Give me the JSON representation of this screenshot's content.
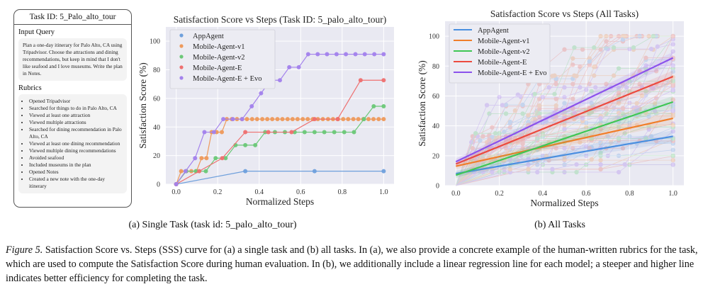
{
  "task_card": {
    "title": "Task ID: 5_Palo_alto_tour",
    "input_query_heading": "Input Query",
    "input_query": "Plan a one-day itinerary for Palo Alto, CA using Tripadvisor. Choose the attractions and dining recommendations, but keep in mind that I don't like seafood and I love museums. Write the plan in Notes.",
    "rubrics_heading": "Rubrics",
    "rubrics": [
      "Opened Tripadvisor",
      "Searched for things to do in Palo Alto, CA",
      "Viewed at least one attraction",
      "Viewed multiple attractions",
      "Searched for dining recommendation in Palo Alto, CA",
      "Viewed at least one dining recommendation",
      "Viewed multiple dining recommendations",
      "Avoided seafood",
      "Included museums in the plan",
      "Opened Notes",
      "Created a new note with the one-day itinerary"
    ]
  },
  "subcaptions": {
    "a": "(a) Single Task (task id: 5_palo_alto_tour)",
    "b": "(b) All Tasks"
  },
  "caption": {
    "figure_label": "Figure 5.",
    "text": " Satisfaction Score vs. Steps (SSS) curve for (a) a single task and (b) all tasks. In (a), we also provide a concrete example of the human-written rubrics for the task, which are used to compute the Satisfaction Score during human evaluation. In (b), we additionally include a linear regression line for each model; a steeper and higher line indicates better efficiency for completing the task."
  },
  "chart_data": [
    {
      "type": "line",
      "title": "Satisfaction Score vs Steps (Task ID: 5_palo_alto_tour)",
      "xlabel": "Normalized Steps",
      "ylabel": "Satisfaction Score (%)",
      "xlim": [
        -0.05,
        1.05
      ],
      "ylim": [
        0,
        110
      ],
      "xticks": [
        "0.0",
        "0.2",
        "0.4",
        "0.6",
        "0.8",
        "1.0"
      ],
      "yticks": [
        "0",
        "20",
        "40",
        "60",
        "80",
        "100"
      ],
      "grid": true,
      "legend_position": "top-left",
      "legend_marker": "dot",
      "series": [
        {
          "name": "AppAgent",
          "color": "#6fa0dc",
          "x": [
            0,
            0.333,
            0.667,
            1.0
          ],
          "y": [
            0,
            9.1,
            9.1,
            9.1
          ]
        },
        {
          "name": "Mobile-Agent-v1",
          "color": "#ee9a5c",
          "x": [
            0,
            0.024,
            0.049,
            0.073,
            0.098,
            0.122,
            0.146,
            0.171,
            0.195,
            0.22,
            0.244,
            0.268,
            0.293,
            0.317,
            0.341,
            0.366,
            0.39,
            0.415,
            0.439,
            0.463,
            0.488,
            0.512,
            0.537,
            0.561,
            0.585,
            0.61,
            0.634,
            0.659,
            0.683,
            0.707,
            0.732,
            0.756,
            0.78,
            0.805,
            0.829,
            0.854,
            0.878,
            0.902,
            0.927,
            0.951,
            0.976,
            1.0
          ],
          "y": [
            0,
            9.1,
            9.1,
            9.1,
            9.1,
            18.2,
            18.2,
            36.4,
            36.4,
            36.4,
            45.5,
            45.5,
            45.5,
            45.5,
            45.5,
            45.5,
            45.5,
            45.5,
            45.5,
            45.5,
            45.5,
            45.5,
            45.5,
            45.5,
            45.5,
            45.5,
            45.5,
            45.5,
            45.5,
            45.5,
            45.5,
            45.5,
            45.5,
            45.5,
            45.5,
            45.5,
            45.5,
            45.5,
            45.5,
            45.5,
            45.5,
            45.5
          ]
        },
        {
          "name": "Mobile-Agent-v2",
          "color": "#6cc878",
          "x": [
            0,
            0.048,
            0.095,
            0.143,
            0.19,
            0.238,
            0.286,
            0.333,
            0.381,
            0.429,
            0.476,
            0.524,
            0.571,
            0.619,
            0.667,
            0.714,
            0.762,
            0.81,
            0.857,
            0.905,
            0.952,
            1.0
          ],
          "y": [
            0,
            9.1,
            9.1,
            9.1,
            18.2,
            18.2,
            27.3,
            27.3,
            27.3,
            36.4,
            36.4,
            36.4,
            36.4,
            36.4,
            36.4,
            36.4,
            36.4,
            36.4,
            36.4,
            45.5,
            54.5,
            54.5
          ]
        },
        {
          "name": "Mobile-Agent-E",
          "color": "#ee7070",
          "x": [
            0,
            0.111,
            0.222,
            0.333,
            0.444,
            0.556,
            0.667,
            0.778,
            0.889,
            1.0
          ],
          "y": [
            0,
            9.1,
            18.2,
            36.4,
            36.4,
            36.4,
            45.5,
            45.5,
            72.7,
            72.7
          ]
        },
        {
          "name": "Mobile-Agent-E + Evo",
          "color": "#a382ec",
          "x": [
            0,
            0.045,
            0.091,
            0.136,
            0.182,
            0.227,
            0.273,
            0.318,
            0.364,
            0.409,
            0.455,
            0.5,
            0.545,
            0.591,
            0.636,
            0.682,
            0.727,
            0.773,
            0.818,
            0.864,
            0.909,
            0.955,
            1.0
          ],
          "y": [
            0,
            9.1,
            18.2,
            36.4,
            36.4,
            45.5,
            45.5,
            45.5,
            54.5,
            63.6,
            72.7,
            72.7,
            81.8,
            81.8,
            90.9,
            90.9,
            90.9,
            90.9,
            90.9,
            90.9,
            90.9,
            90.9,
            90.9
          ]
        }
      ]
    },
    {
      "type": "line",
      "title": "Satisfaction Score vs Steps (All Tasks)",
      "xlabel": "Normalized Steps",
      "ylabel": "Satisfaction Score (%)",
      "xlim": [
        -0.05,
        1.05
      ],
      "ylim": [
        0,
        110
      ],
      "xticks": [
        "0.0",
        "0.2",
        "0.4",
        "0.6",
        "0.8",
        "1.0"
      ],
      "yticks": [
        "0",
        "20",
        "40",
        "60",
        "80",
        "100"
      ],
      "grid": true,
      "legend_position": "top-left",
      "legend_marker": "line",
      "note": "faint per-task trajectories shown behind; bold lines are linear regression fits with confidence bands",
      "series": [
        {
          "name": "AppAgent",
          "color": "#4a8fe0",
          "regression": {
            "y_at_0": 8,
            "y_at_1": 33
          }
        },
        {
          "name": "Mobile-Agent-v1",
          "color": "#f07e2a",
          "regression": {
            "y_at_0": 13,
            "y_at_1": 45
          }
        },
        {
          "name": "Mobile-Agent-v2",
          "color": "#3ec654",
          "regression": {
            "y_at_0": 7,
            "y_at_1": 56
          }
        },
        {
          "name": "Mobile-Agent-E",
          "color": "#ec4a3e",
          "regression": {
            "y_at_0": 14.5,
            "y_at_1": 73
          }
        },
        {
          "name": "Mobile-Agent-E + Evo",
          "color": "#8b52ec",
          "regression": {
            "y_at_0": 16,
            "y_at_1": 85.5
          }
        }
      ]
    }
  ]
}
